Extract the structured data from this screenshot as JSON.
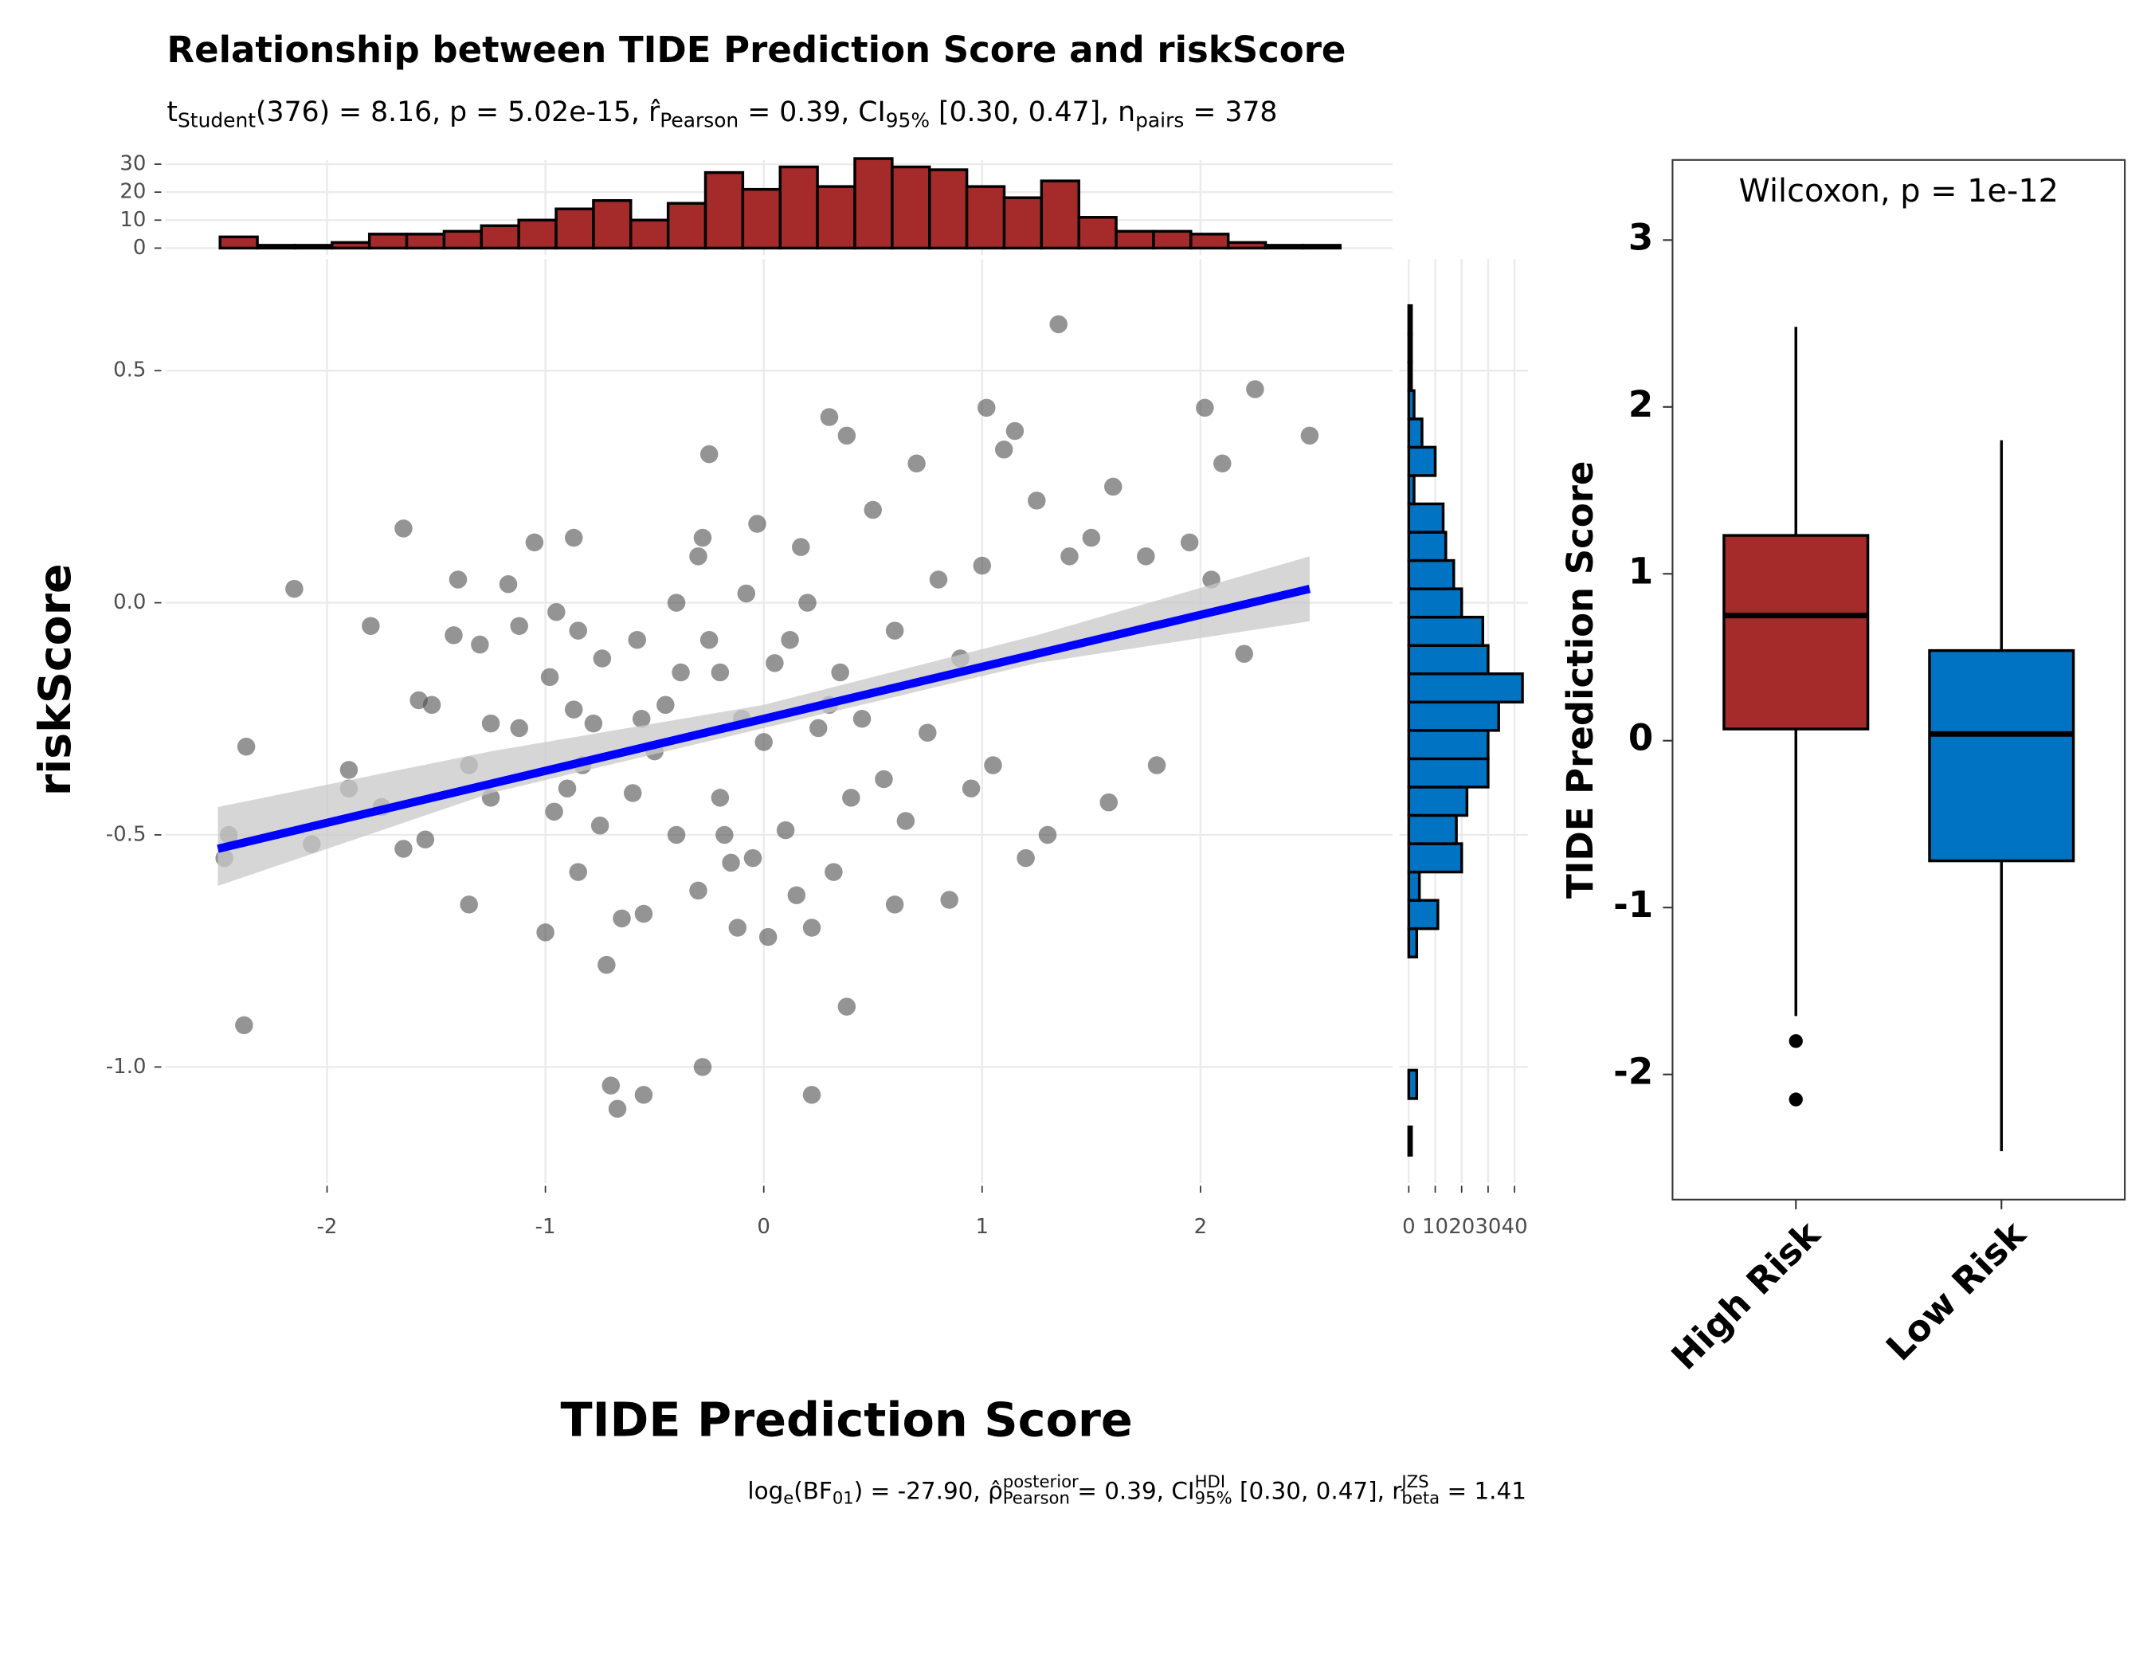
{
  "chart_data": [
    {
      "type": "scatter",
      "title": "Relationship between TIDE Prediction Score and riskScore",
      "subtitle": [
        {
          "t": "t"
        },
        {
          "sub": "Student"
        },
        {
          "t": "(376) = 8.16, p = 5.02e-15, r̂"
        },
        {
          "sub": "Pearson"
        },
        {
          "t": " = 0.39, CI"
        },
        {
          "sub": "95%"
        },
        {
          "t": " [0.30, 0.47], n"
        },
        {
          "sub": "pairs"
        },
        {
          "t": " = 378"
        }
      ],
      "caption": [
        {
          "t": "log"
        },
        {
          "sub": "e"
        },
        {
          "t": "(BF"
        },
        {
          "sub": "01"
        },
        {
          "t": ") = -27.90, ρ̂"
        },
        {
          "sup": "posterior"
        },
        {
          "sub": "Pearson"
        },
        {
          "t": " = 0.39, CI"
        },
        {
          "sup": "HDI"
        },
        {
          "sub": "95%"
        },
        {
          "t": " [0.30, 0.47], r"
        },
        {
          "sup": "JZS"
        },
        {
          "sub": "beta"
        },
        {
          "t": " = 1.41"
        }
      ],
      "x_label": "TIDE Prediction Score",
      "y_label": "riskScore",
      "xlim": [
        -2.74,
        2.88
      ],
      "xticks": [
        -2,
        -1,
        0,
        1,
        2
      ],
      "ylim": [
        -1.25,
        0.74
      ],
      "yticks": [
        {
          "value": -1,
          "label": "-1.0"
        },
        -0.5,
        {
          "value": 0,
          "label": "0.0"
        },
        0.5
      ],
      "grid": true,
      "color": "#4d4d4d",
      "alpha": 0.6,
      "x": [
        -2.45,
        -2.47,
        -2.37,
        -2.38,
        -2.15,
        -2.07,
        -1.9,
        -1.9,
        -1.8,
        -1.75,
        -1.65,
        -1.65,
        -1.58,
        -1.55,
        -1.52,
        -1.42,
        -1.4,
        -1.35,
        -1.35,
        -1.3,
        -1.25,
        -1.25,
        -1.17,
        -1.12,
        -1.12,
        -1.05,
        -1.0,
        -0.98,
        -0.96,
        -0.95,
        -0.9,
        -0.87,
        -0.87,
        -0.85,
        -0.85,
        -0.83,
        -0.78,
        -0.74,
        -0.75,
        -0.72,
        -0.7,
        -0.67,
        -0.65,
        -0.6,
        -0.58,
        -0.56,
        -0.55,
        -0.55,
        -0.5,
        -0.45,
        -0.4,
        -0.4,
        -0.38,
        -0.3,
        -0.3,
        -0.28,
        -0.28,
        -0.25,
        -0.25,
        -0.2,
        -0.2,
        -0.18,
        -0.15,
        -0.12,
        -0.1,
        -0.05,
        -0.03,
        0.0,
        0.02,
        0.05,
        0.1,
        0.15,
        0.17,
        0.2,
        0.22,
        0.25,
        0.3,
        0.32,
        0.35,
        0.38,
        0.4,
        0.45,
        0.5,
        0.55,
        0.6,
        0.65,
        0.7,
        0.75,
        0.8,
        0.85,
        0.9,
        0.95,
        1.0,
        1.02,
        1.05,
        1.1,
        1.15,
        1.2,
        1.25,
        1.3,
        1.35,
        1.4,
        1.5,
        1.58,
        1.6,
        1.75,
        1.8,
        1.95,
        2.02,
        2.1,
        2.05,
        2.2,
        2.25,
        2.5,
        0.38,
        0.22,
        0.3,
        0.6,
        -0.08,
        0.12
      ],
      "y": [
        -0.5,
        -0.55,
        -0.31,
        -0.91,
        0.03,
        -0.52,
        -0.36,
        -0.4,
        -0.05,
        -0.44,
        0.16,
        -0.53,
        -0.21,
        -0.51,
        -0.22,
        -0.07,
        0.05,
        -0.35,
        -0.65,
        -0.09,
        -0.26,
        -0.42,
        0.04,
        -0.27,
        -0.05,
        0.13,
        -0.71,
        -0.16,
        -0.45,
        -0.02,
        -0.4,
        0.14,
        -0.23,
        -0.58,
        -0.06,
        -0.35,
        -0.26,
        -0.12,
        -0.48,
        -0.78,
        -1.04,
        -1.09,
        -0.68,
        -0.41,
        -0.08,
        -0.25,
        -1.06,
        -0.67,
        -0.32,
        -0.22,
        0.0,
        -0.5,
        -0.15,
        0.1,
        -0.62,
        0.14,
        -1.0,
        0.32,
        -0.08,
        -0.15,
        -0.42,
        -0.5,
        -0.56,
        -0.7,
        -0.25,
        -0.55,
        0.17,
        -0.3,
        -0.72,
        -0.13,
        -0.49,
        -0.63,
        0.12,
        0.0,
        -1.06,
        -0.27,
        0.4,
        -0.58,
        -0.15,
        0.36,
        -0.42,
        -0.25,
        0.2,
        -0.38,
        -0.06,
        -0.47,
        0.3,
        -0.28,
        0.05,
        -0.64,
        -0.12,
        -0.4,
        0.08,
        0.42,
        -0.35,
        0.33,
        0.37,
        -0.55,
        0.22,
        -0.5,
        0.6,
        0.1,
        0.14,
        -0.43,
        0.25,
        0.1,
        -0.35,
        0.13,
        0.42,
        0.3,
        0.05,
        -0.11,
        0.46,
        0.36,
        -0.87,
        -0.7,
        -0.22,
        -0.65,
        0.02,
        -0.08
      ],
      "fit": {
        "color": "#0000ff",
        "x": [
          -2.5,
          2.5
        ],
        "y": [
          -0.53,
          0.03
        ]
      },
      "ci_band": {
        "color": "#c8c8c8",
        "x": [
          -2.5,
          -1.25,
          0,
          1.25,
          2.5
        ],
        "lower": [
          -0.61,
          -0.41,
          -0.27,
          -0.13,
          -0.04
        ],
        "upper": [
          -0.44,
          -0.32,
          -0.22,
          -0.07,
          0.1
        ]
      }
    },
    {
      "type": "histogram",
      "orientation": "vertical",
      "color": "#a52a2a",
      "bins": [
        -2.49,
        -2.319,
        -2.148,
        -1.977,
        -1.806,
        -1.635,
        -1.464,
        -1.293,
        -1.122,
        -0.951,
        -0.78,
        -0.609,
        -0.438,
        -0.267,
        -0.096,
        0.075,
        0.246,
        0.417,
        0.588,
        0.759,
        0.93,
        1.101,
        1.272,
        1.443,
        1.614,
        1.785,
        1.956,
        2.127,
        2.298,
        2.469,
        2.64
      ],
      "counts": [
        4,
        1,
        1,
        2,
        5,
        5,
        6,
        8,
        10,
        14,
        17,
        10,
        16,
        27,
        21,
        29,
        22,
        32,
        29,
        28,
        22,
        18,
        24,
        11,
        6,
        6,
        5,
        2,
        1,
        1
      ],
      "xlim": [
        -2.74,
        2.88
      ],
      "xticks": [
        -2,
        -1,
        0,
        1,
        2
      ],
      "ylim": [
        -2.5,
        31.5
      ],
      "yticks": [
        0,
        10,
        20,
        30
      ],
      "grid": true
    },
    {
      "type": "histogram",
      "orientation": "horizontal",
      "color": "#0073c2",
      "bins": [
        -1.19,
        -1.129,
        -1.068,
        -1.007,
        -0.946,
        -0.885,
        -0.824,
        -0.763,
        -0.702,
        -0.641,
        -0.58,
        -0.519,
        -0.458,
        -0.397,
        -0.336,
        -0.275,
        -0.214,
        -0.153,
        -0.092,
        -0.031,
        0.03,
        0.091,
        0.152,
        0.213,
        0.274,
        0.335,
        0.396,
        0.457,
        0.518,
        0.579,
        0.64
      ],
      "counts": [
        1,
        0,
        3,
        0,
        0,
        0,
        0,
        3,
        11,
        4,
        20,
        18,
        22,
        30,
        30,
        34,
        43,
        30,
        28,
        20,
        17,
        14,
        13,
        2,
        10,
        5,
        2,
        1,
        1,
        1
      ],
      "xlim": [
        -3.5,
        45
      ],
      "xticks": [
        0,
        10,
        20,
        30,
        40
      ],
      "ylim": [
        -1.25,
        0.74
      ],
      "yticks": [
        -1,
        -0.5,
        0,
        0.5
      ],
      "grid": true
    },
    {
      "type": "box",
      "y_label": "TIDE Prediction Score",
      "annotation": "Wilcoxon, p = 1e-12",
      "categories": [
        "High Risk",
        "Low Risk"
      ],
      "colors": [
        "#a52a2a",
        "#0073c2"
      ],
      "boxes": [
        {
          "min": -1.65,
          "q1": 0.07,
          "median": 0.75,
          "q3": 1.23,
          "max": 2.48,
          "outliers": [
            -1.8,
            -2.15
          ]
        },
        {
          "min": -2.46,
          "q1": -0.72,
          "median": 0.04,
          "q3": 0.54,
          "max": 1.8,
          "outliers": []
        }
      ],
      "ylim": [
        -2.75,
        3.48
      ],
      "yticks": [
        -2,
        -1,
        0,
        1,
        2,
        3
      ]
    }
  ]
}
